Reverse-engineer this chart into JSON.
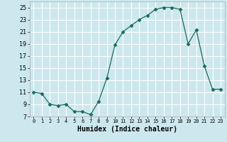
{
  "x": [
    0,
    1,
    2,
    3,
    4,
    5,
    6,
    7,
    8,
    9,
    10,
    11,
    12,
    13,
    14,
    15,
    16,
    17,
    18,
    19,
    20,
    21,
    22,
    23
  ],
  "y": [
    11,
    10.8,
    9,
    8.8,
    9,
    7.8,
    7.8,
    7.3,
    9.5,
    13.3,
    18.8,
    21,
    22,
    23,
    23.7,
    24.7,
    25,
    25,
    24.7,
    19.0,
    21.3,
    15.3,
    11.5,
    11.5
  ],
  "line_color": "#1a6b5c",
  "marker": "D",
  "marker_size": 2.5,
  "bg_color": "#cce8ee",
  "grid_color": "#ffffff",
  "xlabel": "Humidex (Indice chaleur)",
  "ylim": [
    7,
    26
  ],
  "xlim": [
    -0.5,
    23.5
  ],
  "yticks": [
    7,
    9,
    11,
    13,
    15,
    17,
    19,
    21,
    23,
    25
  ],
  "xticks": [
    0,
    1,
    2,
    3,
    4,
    5,
    6,
    7,
    8,
    9,
    10,
    11,
    12,
    13,
    14,
    15,
    16,
    17,
    18,
    19,
    20,
    21,
    22,
    23
  ]
}
